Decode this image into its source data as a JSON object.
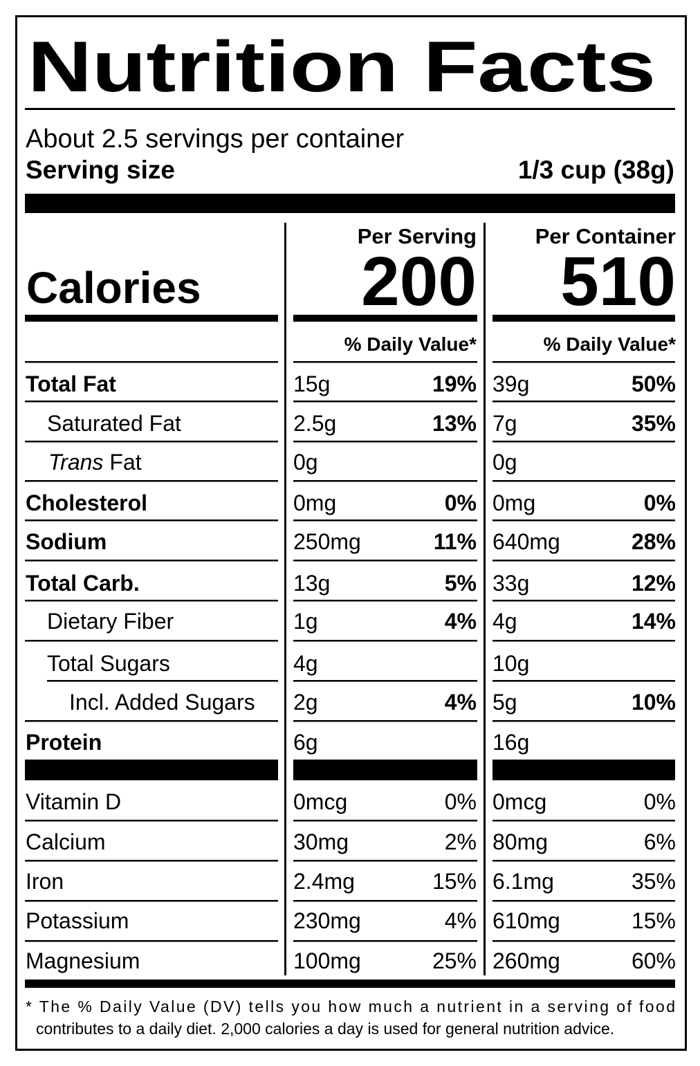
{
  "header": {
    "title": "Nutrition Facts",
    "servings": "About 2.5 servings per container",
    "serving_size_label": "Serving size",
    "serving_size": "1/3 cup (38g)"
  },
  "calories": {
    "label": "Calories",
    "columns": [
      {
        "heading": "Per Serving",
        "value": "200",
        "dv_heading": "% Daily Value*"
      },
      {
        "heading": "Per Container",
        "value": "510",
        "dv_heading": "% Daily Value*"
      }
    ]
  },
  "nutrients": [
    {
      "name": "Total Fat",
      "per_serving": [
        "15g",
        "19%"
      ],
      "per_container": [
        "39g",
        "50%"
      ]
    },
    {
      "name": "Saturated Fat",
      "per_serving": [
        "2.5g",
        "13%"
      ],
      "per_container": [
        "7g",
        "35%"
      ]
    },
    {
      "name_italic": "Trans",
      "name": "Fat",
      "per_serving": [
        "0g"
      ],
      "per_container": [
        "0g"
      ]
    },
    {
      "name": "Cholesterol",
      "per_serving": [
        "0mg",
        "0%"
      ],
      "per_container": [
        "0mg",
        "0%"
      ]
    },
    {
      "name": "Sodium",
      "per_serving": [
        "250mg",
        "11%"
      ],
      "per_container": [
        "640mg",
        "28%"
      ]
    },
    {
      "name": "Total Carb.",
      "per_serving": [
        "13g",
        "5%"
      ],
      "per_container": [
        "33g",
        "12%"
      ]
    },
    {
      "name": "Dietary Fiber",
      "per_serving": [
        "1g",
        "4%"
      ],
      "per_container": [
        "4g",
        "14%"
      ]
    },
    {
      "name": "Total Sugars",
      "per_serving": [
        "4g"
      ],
      "per_container": [
        "10g"
      ]
    },
    {
      "name": "Incl. Added Sugars",
      "per_serving": [
        "2g",
        "4%"
      ],
      "per_container": [
        "5g",
        "10%"
      ]
    },
    {
      "name": "Protein",
      "per_serving": [
        "6g"
      ],
      "per_container": [
        "16g"
      ]
    }
  ],
  "vitamins": [
    {
      "name": "Vitamin D",
      "per_serving": [
        "0mcg",
        "0%"
      ],
      "per_container": [
        "0mcg",
        "0%"
      ]
    },
    {
      "name": "Calcium",
      "per_serving": [
        "30mg",
        "2%"
      ],
      "per_container": [
        "80mg",
        "6%"
      ]
    },
    {
      "name": "Iron",
      "per_serving": [
        "2.4mg",
        "15%"
      ],
      "per_container": [
        "6.1mg",
        "35%"
      ]
    },
    {
      "name": "Potassium",
      "per_serving": [
        "230mg",
        "4%"
      ],
      "per_container": [
        "610mg",
        "15%"
      ]
    },
    {
      "name": "Magnesium",
      "per_serving": [
        "100mg",
        "25%"
      ],
      "per_container": [
        "260mg",
        "60%"
      ]
    }
  ],
  "footnote": [
    "* The % Daily Value (DV) tells you how much a nutrient in a serving of food",
    "contributes to a daily diet. 2,000 calories a day is used for general nutrition advice."
  ]
}
